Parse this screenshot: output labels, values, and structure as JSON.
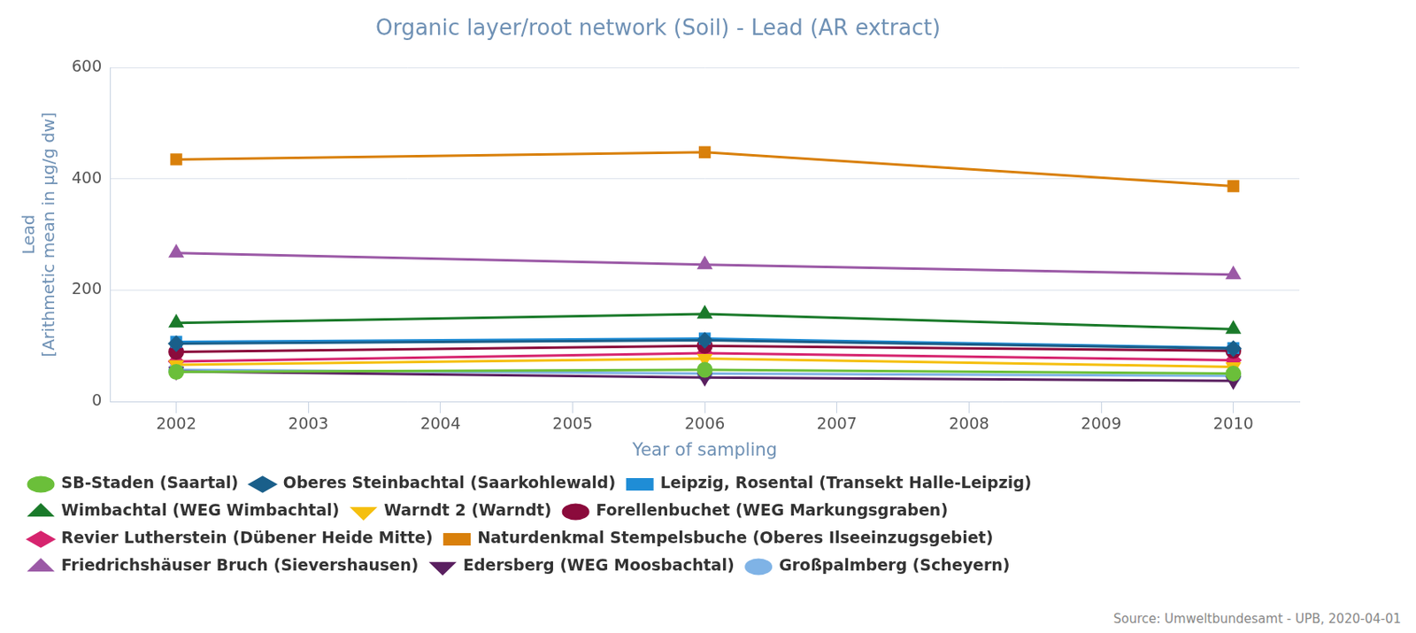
{
  "chart_data": {
    "type": "line",
    "title": "Organic layer/root network (Soil) - Lead (AR extract)",
    "x_label": "Year of sampling",
    "y_label": [
      "Lead",
      "[Arithmetic mean in µg/g dw]"
    ],
    "source": "Source: Umweltbundesamt - UPB, 2020-04-01",
    "x": [
      2002,
      2006,
      2010
    ],
    "xlim": [
      2001.5,
      2010.5
    ],
    "xticks": [
      2002,
      2003,
      2004,
      2005,
      2006,
      2007,
      2008,
      2009,
      2010
    ],
    "ylim": [
      0,
      600
    ],
    "yticks": [
      0,
      200,
      400,
      600
    ],
    "grid": true,
    "legend": "bottom",
    "series": [
      {
        "name": "SB-Staden (Saartal)",
        "color": "#6bbf3a",
        "marker": "circle",
        "values": [
          53,
          57,
          50
        ]
      },
      {
        "name": "Oberes Steinbachtal (Saarkohlewald)",
        "color": "#1a5f8a",
        "marker": "diamond",
        "values": [
          104,
          110,
          95
        ]
      },
      {
        "name": "Leipzig, Rosental (Transekt Halle-Leipzig)",
        "color": "#1f8dd6",
        "marker": "square",
        "values": [
          107,
          113,
          96
        ]
      },
      {
        "name": "Wimbachtal (WEG Wimbachtal)",
        "color": "#1a7a2a",
        "marker": "triangle",
        "values": [
          141,
          157,
          130
        ]
      },
      {
        "name": "Warndt 2 (Warndt)",
        "color": "#f5bf0f",
        "marker": "triangle-down",
        "values": [
          66,
          77,
          62
        ]
      },
      {
        "name": "Forellenbuchet (WEG Markungsgraben)",
        "color": "#8b0b3c",
        "marker": "circle",
        "values": [
          89,
          100,
          91
        ]
      },
      {
        "name": "Revier Lutherstein (Dübener Heide Mitte)",
        "color": "#d6246e",
        "marker": "diamond",
        "values": [
          72,
          87,
          74
        ]
      },
      {
        "name": "Naturdenkmal Stempelsbuche (Oberes Ilseeinzugsgebiet)",
        "color": "#d9800b",
        "marker": "square",
        "values": [
          435,
          448,
          387
        ]
      },
      {
        "name": "Friedrichshäuser Bruch (Sievershausen)",
        "color": "#9b59a6",
        "marker": "triangle",
        "values": [
          267,
          246,
          228
        ]
      },
      {
        "name": "Edersberg (WEG Moosbachtal)",
        "color": "#5a2060",
        "marker": "triangle-down",
        "values": [
          54,
          43,
          37
        ]
      },
      {
        "name": "Großpalmberg (Scheyern)",
        "color": "#7fb3e6",
        "marker": "circle",
        "values": [
          57,
          50,
          46
        ]
      }
    ]
  }
}
